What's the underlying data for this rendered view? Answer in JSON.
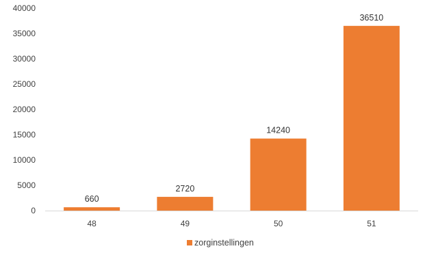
{
  "chart_data": {
    "type": "bar",
    "categories": [
      "48",
      "49",
      "50",
      "51"
    ],
    "series": [
      {
        "name": "zorginstellingen",
        "values": [
          660,
          2720,
          14240,
          36510
        ],
        "color": "#ED7D31"
      }
    ],
    "data_labels": [
      "660",
      "2720",
      "14240",
      "36510"
    ],
    "y_ticks": [
      "0",
      "5000",
      "10000",
      "15000",
      "20000",
      "25000",
      "30000",
      "35000",
      "40000"
    ],
    "ylim": [
      0,
      40000
    ],
    "grid": false,
    "legend": "bottom",
    "axis_color": "#D9D9D9"
  }
}
